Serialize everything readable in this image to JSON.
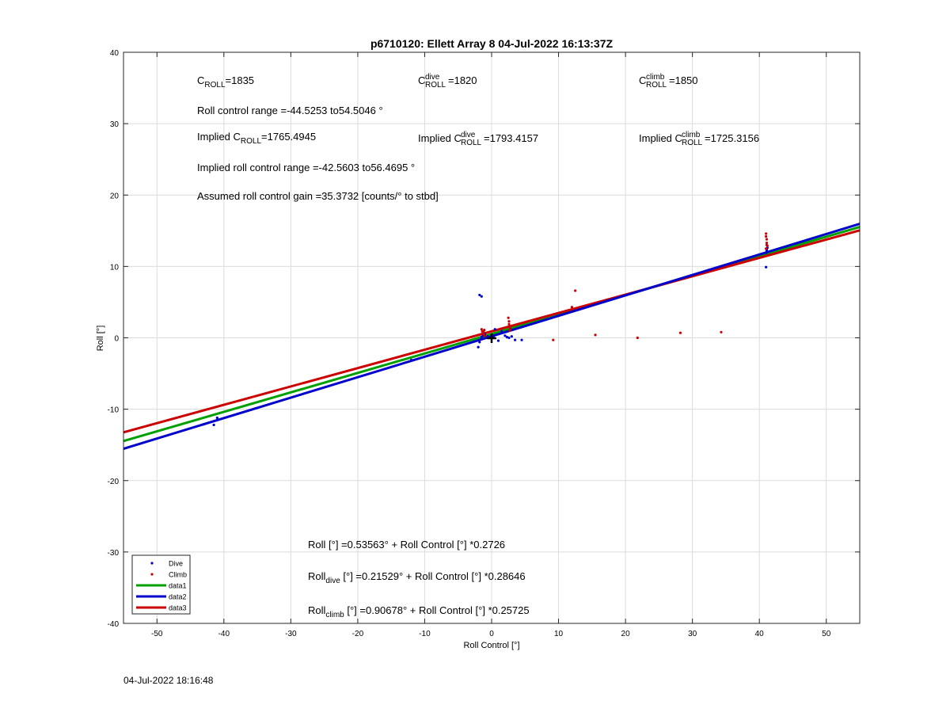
{
  "chart_data": {
    "type": "scatter",
    "title": "p6710120: Ellett Array 8 04-Jul-2022 16:13:37Z",
    "xlabel": "Roll Control [°]",
    "ylabel": "Roll [°]",
    "xlim": [
      -55,
      55
    ],
    "ylim": [
      -40,
      40
    ],
    "xticks": [
      -50,
      -40,
      -30,
      -20,
      -10,
      0,
      10,
      20,
      30,
      40,
      50
    ],
    "yticks": [
      -40,
      -30,
      -20,
      -10,
      0,
      10,
      20,
      30,
      40
    ],
    "grid": true,
    "legend_position": "bottom-left",
    "series": [
      {
        "name": "Dive",
        "kind": "points",
        "color": "#0000cc",
        "points": [
          [
            -41.5,
            -12.2
          ],
          [
            -41.0,
            -11.2
          ],
          [
            -12.0,
            -3.1
          ],
          [
            -1.8,
            6.0
          ],
          [
            -1.5,
            5.8
          ],
          [
            -2.0,
            -1.3
          ],
          [
            -1.8,
            -0.6
          ],
          [
            -1.6,
            -0.2
          ],
          [
            -1.5,
            0.1
          ],
          [
            -1.3,
            0.3
          ],
          [
            -1.0,
            0.5
          ],
          [
            -0.6,
            0.2
          ],
          [
            -0.2,
            0.1
          ],
          [
            0.3,
            0.2
          ],
          [
            0.5,
            1.2
          ],
          [
            1.0,
            -0.4
          ],
          [
            1.5,
            0.9
          ],
          [
            2.0,
            0.3
          ],
          [
            2.3,
            0.1
          ],
          [
            2.6,
            0.0
          ],
          [
            3.0,
            0.2
          ],
          [
            3.5,
            -0.3
          ],
          [
            4.5,
            -0.3
          ],
          [
            41.0,
            9.9
          ],
          [
            41.1,
            12.2
          ],
          [
            41.2,
            12.6
          ],
          [
            41.0,
            11.9
          ],
          [
            41.1,
            12.4
          ]
        ]
      },
      {
        "name": "Climb",
        "kind": "points",
        "color": "#cc0000",
        "points": [
          [
            -1.5,
            1.2
          ],
          [
            -1.4,
            0.9
          ],
          [
            -1.3,
            0.6
          ],
          [
            -1.2,
            0.8
          ],
          [
            -1.1,
            1.1
          ],
          [
            -1.0,
            0.3
          ],
          [
            -1.2,
            0.5
          ],
          [
            2.5,
            2.8
          ],
          [
            2.6,
            2.3
          ],
          [
            2.6,
            1.9
          ],
          [
            2.7,
            1.6
          ],
          [
            2.8,
            1.3
          ],
          [
            2.7,
            1.0
          ],
          [
            12.0,
            4.3
          ],
          [
            12.5,
            6.6
          ],
          [
            9.2,
            -0.3
          ],
          [
            15.5,
            0.4
          ],
          [
            21.8,
            0.0
          ],
          [
            28.2,
            0.7
          ],
          [
            34.3,
            0.8
          ],
          [
            41.0,
            14.6
          ],
          [
            41.0,
            14.2
          ],
          [
            41.1,
            13.8
          ],
          [
            41.1,
            13.3
          ],
          [
            41.2,
            12.9
          ],
          [
            41.0,
            12.5
          ],
          [
            41.1,
            13.0
          ]
        ]
      },
      {
        "name": "data1",
        "kind": "line",
        "color": "#00a000",
        "intercept": 0.53563,
        "slope": 0.2726
      },
      {
        "name": "data2",
        "kind": "line",
        "color": "#0000cc",
        "intercept": 0.21529,
        "slope": 0.28646
      },
      {
        "name": "data3",
        "kind": "line",
        "color": "#cc0000",
        "intercept": 0.90678,
        "slope": 0.25725
      }
    ],
    "annotations": {
      "c_roll": "=1835",
      "c_roll_dive": "=1820",
      "c_roll_climb": "=1850",
      "range": "Roll control range =-44.5253 to54.5046 °",
      "implied_c_roll": "=1765.4945",
      "implied_c_roll_dive": "=1793.4157",
      "implied_c_roll_climb": "=1725.3156",
      "implied_range": "Implied roll control range =-42.5603 to56.4695 °",
      "gain": "Assumed roll control gain =35.3732 [counts/° to stbd]",
      "fit_all_rest": " [°] =0.53563° + Roll Control [°] *0.2726",
      "fit_dive_rest": " [°] =0.21529° + Roll Control [°] *0.28646",
      "fit_climb_rest": " [°] =0.90678° + Roll Control [°] *0.25725",
      "c": "C",
      "roll_sub": "ROLL",
      "dive_sup": "dive",
      "climb_sup": "climb",
      "implied_prefix": "Implied C",
      "roll_word": "Roll",
      "dive_sub": "dive",
      "climb_sub": "climb"
    }
  },
  "footer": {
    "timestamp": "04-Jul-2022 18:16:48"
  }
}
